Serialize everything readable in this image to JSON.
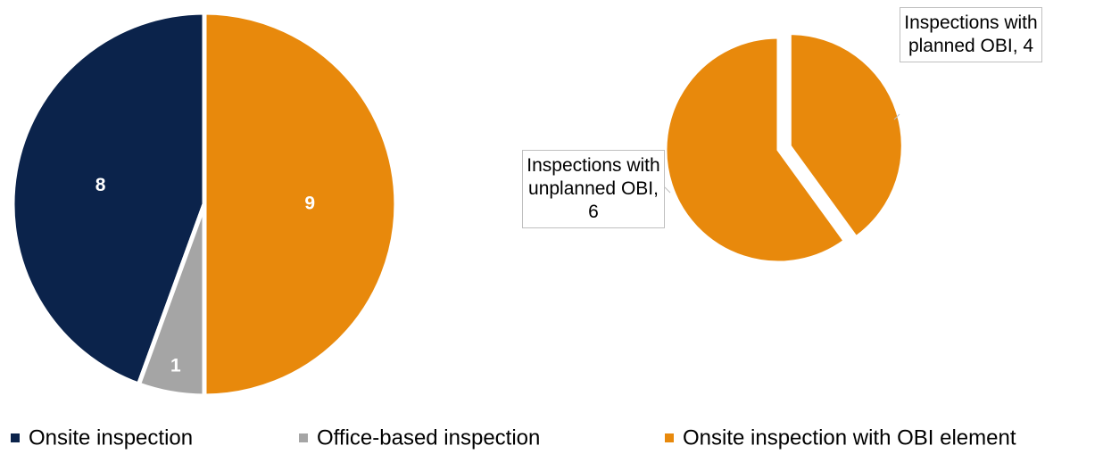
{
  "chart_data": [
    {
      "type": "pie",
      "categories": [
        "Onsite inspection",
        "Office-based inspection",
        "Onsite inspection with OBI element"
      ],
      "values": [
        8,
        1,
        9
      ],
      "colors": [
        "#0b234b",
        "#a5a5a5",
        "#e8890c"
      ],
      "legend": "bottom"
    },
    {
      "type": "pie",
      "values": [
        4,
        6
      ],
      "value_labels": [
        "Inspections with planned OBI, 4",
        "Inspections with unplanned OBI, 6"
      ],
      "colors": [
        "#e8890c",
        "#e8890c"
      ]
    }
  ]
}
